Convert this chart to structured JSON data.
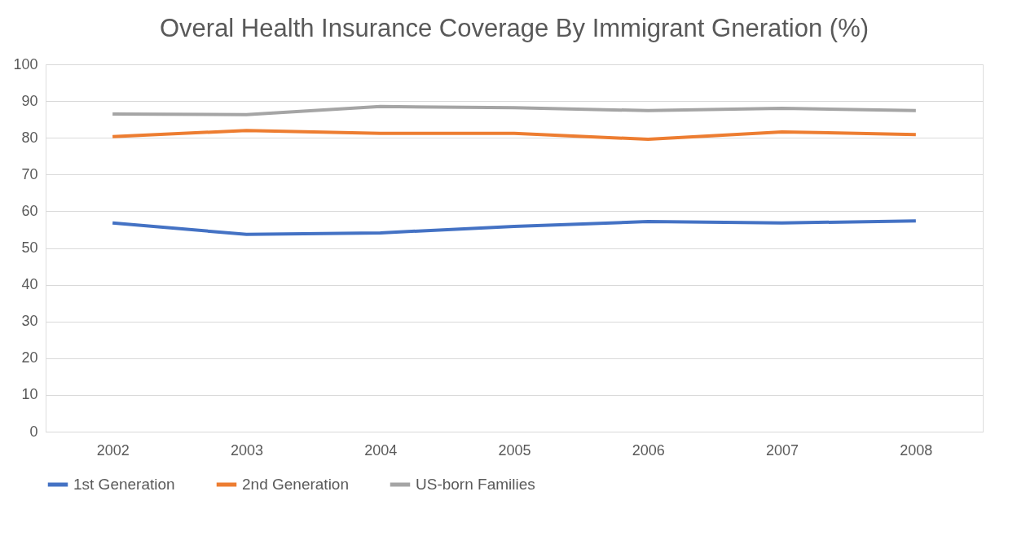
{
  "chart_data": {
    "type": "line",
    "title": "Overal Health Insurance Coverage By Immigrant Gneration (%)",
    "categories": [
      "2002",
      "2003",
      "2004",
      "2005",
      "2006",
      "2007",
      "2008"
    ],
    "series": [
      {
        "name": "1st Generation",
        "color": "#4472c4",
        "values": [
          56.8,
          53.7,
          54.1,
          55.9,
          57.2,
          56.8,
          57.4
        ]
      },
      {
        "name": "2nd Generation",
        "color": "#ed7d31",
        "values": [
          80.3,
          82.0,
          81.2,
          81.2,
          79.6,
          81.6,
          80.9
        ]
      },
      {
        "name": "US-born Families",
        "color": "#a5a5a5",
        "values": [
          86.5,
          86.3,
          88.5,
          88.2,
          87.4,
          88.0,
          87.4
        ]
      }
    ],
    "ylim": [
      0,
      100
    ],
    "yticks": [
      0,
      10,
      20,
      30,
      40,
      50,
      60,
      70,
      80,
      90,
      100
    ],
    "grid": "y",
    "legend": "bottom",
    "marker": "none",
    "line_style": "solid"
  }
}
